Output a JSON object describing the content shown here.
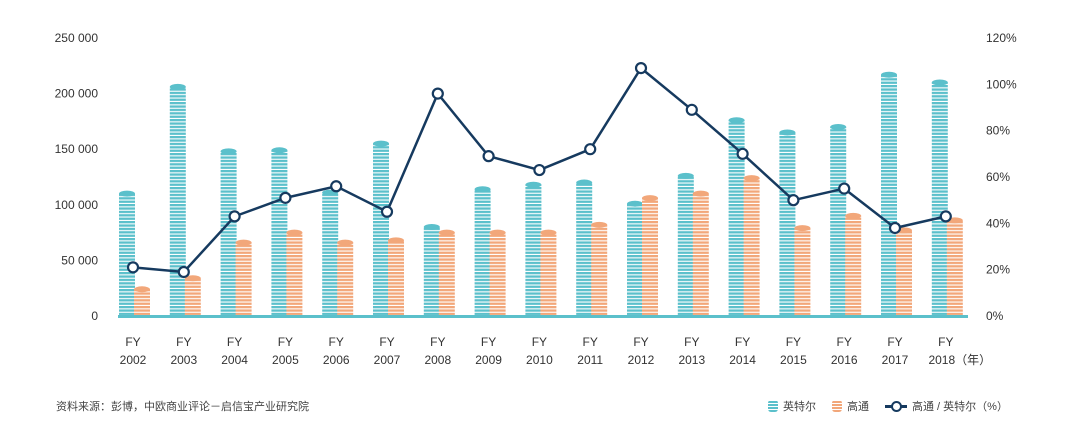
{
  "chart_data": {
    "type": "bar",
    "categories": [
      "FY 2002",
      "FY 2003",
      "FY 2004",
      "FY 2005",
      "FY 2006",
      "FY 2007",
      "FY 2008",
      "FY 2009",
      "FY 2010",
      "FY 2011",
      "FY 2012",
      "FY 2013",
      "FY 2014",
      "FY 2015",
      "FY 2016",
      "FY 2017",
      "FY 2018"
    ],
    "category_lines": [
      [
        "FY",
        "2002"
      ],
      [
        "FY",
        "2003"
      ],
      [
        "FY",
        "2004"
      ],
      [
        "FY",
        "2005"
      ],
      [
        "FY",
        "2006"
      ],
      [
        "FY",
        "2007"
      ],
      [
        "FY",
        "2008"
      ],
      [
        "FY",
        "2009"
      ],
      [
        "FY",
        "2010"
      ],
      [
        "FY",
        "2011"
      ],
      [
        "FY",
        "2012"
      ],
      [
        "FY",
        "2013"
      ],
      [
        "FY",
        "2014"
      ],
      [
        "FY",
        "2015"
      ],
      [
        "FY",
        "2016"
      ],
      [
        "FY",
        "2017"
      ],
      [
        "FY",
        "2018（年）"
      ]
    ],
    "series": [
      {
        "name": "英特尔",
        "type": "bar",
        "axis": "left",
        "color": "#5bc0cb",
        "values": [
          110000,
          206000,
          148000,
          149000,
          111000,
          155000,
          80000,
          114000,
          118000,
          120000,
          101000,
          126000,
          176000,
          165000,
          170000,
          217000,
          210000
        ]
      },
      {
        "name": "高通",
        "type": "bar",
        "axis": "left",
        "color": "#f2a77a",
        "values": [
          24000,
          34000,
          66000,
          75000,
          66000,
          68000,
          75000,
          75000,
          75000,
          82000,
          106000,
          110000,
          124000,
          79000,
          90000,
          77000,
          86000
        ]
      },
      {
        "name": "高通 / 英特尔（%）",
        "type": "line",
        "axis": "right",
        "color": "#163a5f",
        "values": [
          21,
          19,
          43,
          51,
          56,
          45,
          96,
          69,
          63,
          72,
          107,
          89,
          70,
          50,
          55,
          38,
          43
        ]
      }
    ],
    "y_left": {
      "ylim": [
        0,
        250000
      ],
      "ticks": [
        "0",
        "50 000",
        "100 000",
        "150 000",
        "200 000",
        "250 000"
      ]
    },
    "y_right": {
      "ylim": [
        0,
        120
      ],
      "ticks": [
        "0%",
        "20%",
        "40%",
        "60%",
        "80%",
        "100%",
        "120%"
      ]
    },
    "legend_placement": "bottom-right",
    "grid": false
  },
  "source": "资料来源：彭博，中欧商业评论－启信宝产业研究院"
}
